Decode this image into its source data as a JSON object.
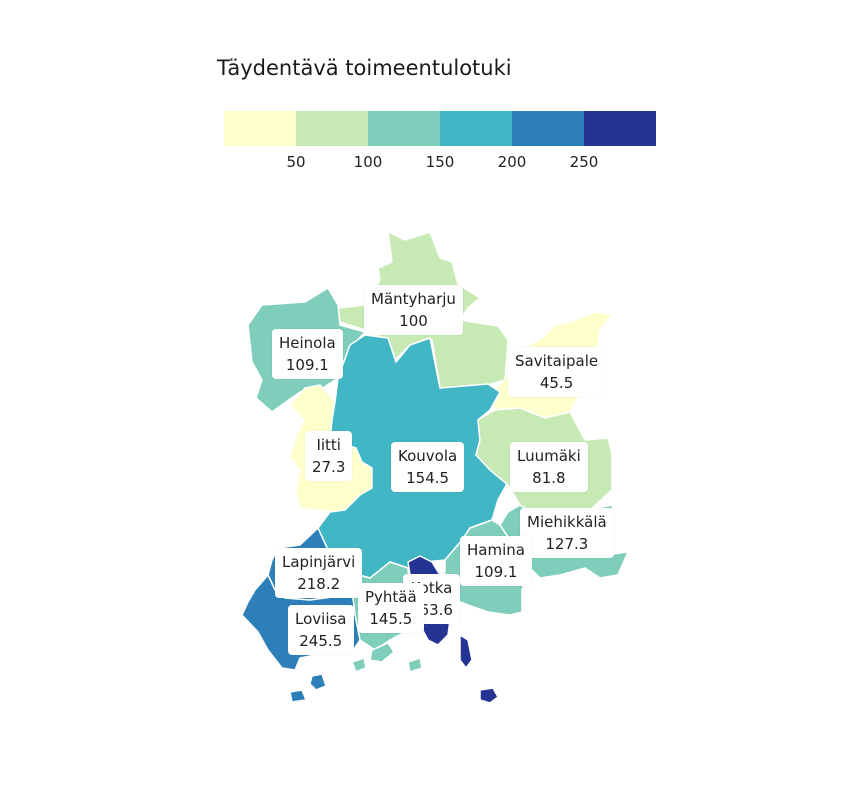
{
  "title": "Täydentävä toimeentulotuki",
  "legend": {
    "colors": [
      "#ffffcc",
      "#c7e9b4",
      "#7fcdbb",
      "#41b6c4",
      "#2c7fb8",
      "#253494"
    ],
    "ticks": [
      "50",
      "100",
      "150",
      "200",
      "250"
    ]
  },
  "regions": [
    {
      "name": "Mäntyharju",
      "value": "100"
    },
    {
      "name": "Heinola",
      "value": "109.1"
    },
    {
      "name": "Savitaipale",
      "value": "45.5"
    },
    {
      "name": "Iitti",
      "value": "27.3"
    },
    {
      "name": "Kouvola",
      "value": "154.5"
    },
    {
      "name": "Luumäki",
      "value": "81.8"
    },
    {
      "name": "Miehikkälä",
      "value": "127.3"
    },
    {
      "name": "Hamina",
      "value": "109.1"
    },
    {
      "name": "Lapinjärvi",
      "value": "218.2"
    },
    {
      "name": "Kotka",
      "value": "263.6"
    },
    {
      "name": "Pyhtää",
      "value": "145.5"
    },
    {
      "name": "Loviisa",
      "value": "245.5"
    }
  ]
}
